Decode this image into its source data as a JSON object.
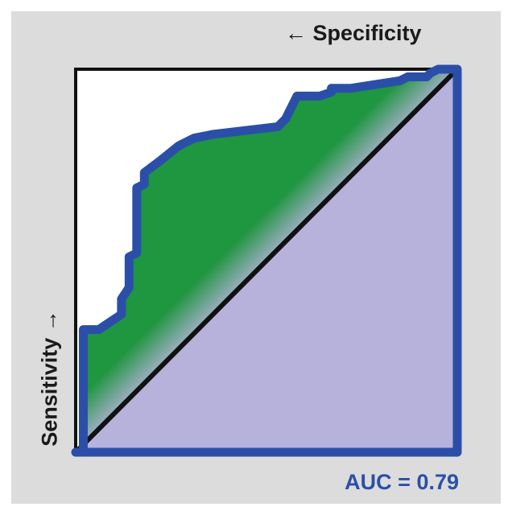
{
  "chart_data": {
    "type": "area",
    "title": "",
    "xlabel": "← Specificity",
    "ylabel": "Sensitivity →",
    "annotation": "AUC = 0.79",
    "xlim": [
      0,
      1
    ],
    "ylim": [
      0,
      1
    ],
    "grid": false,
    "series": [
      {
        "x": [
          0,
          0.02,
          0.02,
          0.06,
          0.12,
          0.12,
          0.14,
          0.14,
          0.16,
          0.16,
          0.18,
          0.18,
          0.22,
          0.27,
          0.31,
          0.36,
          0.53,
          0.55,
          0.58,
          0.64,
          0.67,
          0.67,
          0.72,
          0.85,
          0.87,
          0.92,
          0.93,
          0.95,
          0.96,
          1.0
        ],
        "y": [
          0,
          0,
          0.32,
          0.32,
          0.36,
          0.4,
          0.43,
          0.51,
          0.52,
          0.69,
          0.7,
          0.73,
          0.76,
          0.8,
          0.82,
          0.83,
          0.85,
          0.87,
          0.93,
          0.93,
          0.94,
          0.95,
          0.95,
          0.97,
          0.98,
          0.98,
          0.99,
          1.0,
          1.0,
          1.0
        ]
      }
    ],
    "reference_line": {
      "x": [
        0,
        1
      ],
      "y": [
        0,
        1
      ]
    },
    "colors": {
      "background": "#dcdcdc",
      "plot_area": "#ffffff",
      "curve": "#2b4fa8",
      "gain_area": "#1f9640",
      "chance_area": "#b6b2dc",
      "diagonal": "#111111",
      "frame": "#111111",
      "auc_text": "#2b4fa8"
    }
  }
}
